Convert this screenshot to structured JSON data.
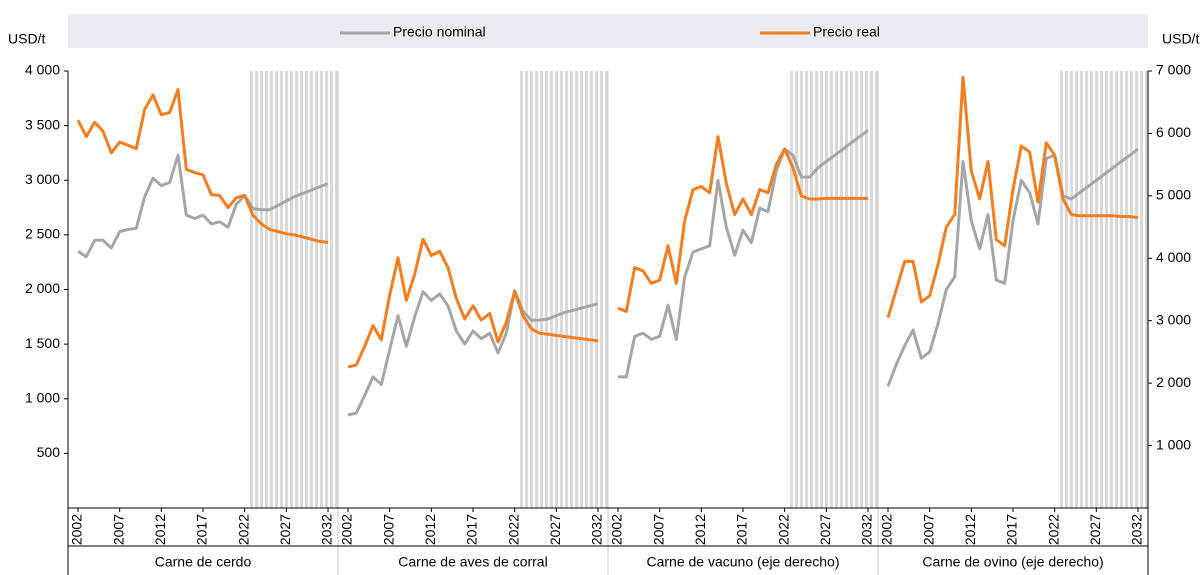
{
  "chart_data": [
    {
      "type": "line",
      "xlabel": "Carne de cerdo",
      "ylabel": "USD/t",
      "shade_from": 2023,
      "x": [
        2002,
        2003,
        2004,
        2005,
        2006,
        2007,
        2008,
        2009,
        2010,
        2011,
        2012,
        2013,
        2014,
        2015,
        2016,
        2017,
        2018,
        2019,
        2020,
        2021,
        2022,
        2023,
        2024,
        2025,
        2026,
        2027,
        2028,
        2029,
        2030,
        2031,
        2032
      ],
      "xticks": [
        2002,
        2007,
        2012,
        2017,
        2022,
        2027,
        2032
      ],
      "ylim": [
        0,
        4000
      ],
      "yticks": [
        {
          "value": 500,
          "label": "500"
        },
        {
          "value": 1000,
          "label": "1 000"
        },
        {
          "value": 1500,
          "label": "1 500"
        },
        {
          "value": 2000,
          "label": "2 000"
        },
        {
          "value": 2500,
          "label": "2 500"
        },
        {
          "value": 3000,
          "label": "3 000"
        },
        {
          "value": 3500,
          "label": "3 500"
        },
        {
          "value": 4000,
          "label": "4 000"
        }
      ],
      "series": [
        {
          "name": "Precio nominal",
          "color": "#a6a6a6",
          "values": [
            2350,
            2300,
            2450,
            2450,
            2380,
            2530,
            2550,
            2560,
            2850,
            3020,
            2950,
            2980,
            3230,
            2680,
            2650,
            2680,
            2600,
            2620,
            2570,
            2780,
            2860,
            2740,
            2730,
            2730,
            2770,
            2810,
            2850,
            2880,
            2910,
            2940,
            2970
          ]
        },
        {
          "name": "Precio real",
          "color": "#f47d20",
          "values": [
            3550,
            3400,
            3530,
            3450,
            3250,
            3350,
            3320,
            3290,
            3650,
            3780,
            3600,
            3620,
            3830,
            3100,
            3070,
            3050,
            2870,
            2860,
            2750,
            2840,
            2860,
            2680,
            2600,
            2550,
            2530,
            2510,
            2500,
            2480,
            2460,
            2440,
            2430
          ]
        }
      ]
    },
    {
      "type": "line",
      "xlabel": "Carne de aves de corral",
      "shade_from": 2023,
      "x": [
        2002,
        2003,
        2004,
        2005,
        2006,
        2007,
        2008,
        2009,
        2010,
        2011,
        2012,
        2013,
        2014,
        2015,
        2016,
        2017,
        2018,
        2019,
        2020,
        2021,
        2022,
        2023,
        2024,
        2025,
        2026,
        2027,
        2028,
        2029,
        2030,
        2031,
        2032
      ],
      "xticks": [
        2002,
        2007,
        2012,
        2017,
        2022,
        2027,
        2032
      ],
      "ylim": [
        0,
        4000
      ],
      "series": [
        {
          "name": "Precio nominal",
          "color": "#a6a6a6",
          "values": [
            850,
            870,
            1030,
            1200,
            1130,
            1450,
            1760,
            1480,
            1750,
            1980,
            1900,
            1960,
            1850,
            1620,
            1500,
            1620,
            1550,
            1600,
            1420,
            1600,
            1990,
            1800,
            1720,
            1720,
            1730,
            1760,
            1790,
            1810,
            1830,
            1850,
            1870
          ]
        },
        {
          "name": "Precio real",
          "color": "#f47d20",
          "values": [
            1290,
            1310,
            1480,
            1670,
            1540,
            1950,
            2290,
            1900,
            2140,
            2460,
            2310,
            2350,
            2200,
            1920,
            1730,
            1850,
            1720,
            1780,
            1520,
            1700,
            1980,
            1760,
            1640,
            1600,
            1590,
            1580,
            1570,
            1560,
            1550,
            1540,
            1530
          ]
        }
      ]
    },
    {
      "type": "line",
      "xlabel": "Carne de vacuno (eje derecho)",
      "y2label": "USD/t",
      "shade_from": 2023,
      "x": [
        2002,
        2003,
        2004,
        2005,
        2006,
        2007,
        2008,
        2009,
        2010,
        2011,
        2012,
        2013,
        2014,
        2015,
        2016,
        2017,
        2018,
        2019,
        2020,
        2021,
        2022,
        2023,
        2024,
        2025,
        2026,
        2027,
        2028,
        2029,
        2030,
        2031,
        2032
      ],
      "xticks": [
        2002,
        2007,
        2012,
        2017,
        2022,
        2027,
        2032
      ],
      "y2lim": [
        0,
        7000
      ],
      "y2ticks": [
        {
          "value": 1000,
          "label": "1 000"
        },
        {
          "value": 2000,
          "label": "2 000"
        },
        {
          "value": 3000,
          "label": "3 000"
        },
        {
          "value": 4000,
          "label": "4 000"
        },
        {
          "value": 5000,
          "label": "5 000"
        },
        {
          "value": 6000,
          "label": "6 000"
        },
        {
          "value": 7000,
          "label": "7 000"
        }
      ],
      "series": [
        {
          "name": "Precio nominal",
          "color": "#a6a6a6",
          "axis": "y2",
          "values": [
            2100,
            2100,
            2750,
            2800,
            2700,
            2750,
            3250,
            2700,
            3700,
            4100,
            4150,
            4200,
            5250,
            4500,
            4050,
            4450,
            4250,
            4800,
            4750,
            5400,
            5750,
            5650,
            5300,
            5300,
            5450,
            5550,
            5650,
            5750,
            5850,
            5950,
            6050
          ]
        },
        {
          "name": "Precio real",
          "color": "#f47d20",
          "axis": "y2",
          "values": [
            3200,
            3150,
            3850,
            3800,
            3600,
            3650,
            4200,
            3600,
            4600,
            5100,
            5150,
            5050,
            5950,
            5200,
            4700,
            4950,
            4700,
            5100,
            5050,
            5500,
            5750,
            5450,
            5000,
            4950,
            4950,
            4960,
            4960,
            4960,
            4960,
            4960,
            4960
          ]
        }
      ]
    },
    {
      "type": "line",
      "xlabel": "Carne de ovino (eje derecho)",
      "shade_from": 2023,
      "x": [
        2002,
        2003,
        2004,
        2005,
        2006,
        2007,
        2008,
        2009,
        2010,
        2011,
        2012,
        2013,
        2014,
        2015,
        2016,
        2017,
        2018,
        2019,
        2020,
        2021,
        2022,
        2023,
        2024,
        2025,
        2026,
        2027,
        2028,
        2029,
        2030,
        2031,
        2032
      ],
      "xticks": [
        2002,
        2007,
        2012,
        2017,
        2022,
        2027,
        2032
      ],
      "y2lim": [
        0,
        7000
      ],
      "series": [
        {
          "name": "Precio nominal",
          "color": "#a6a6a6",
          "axis": "y2",
          "values": [
            1950,
            2300,
            2600,
            2850,
            2400,
            2500,
            2950,
            3500,
            3700,
            5550,
            4600,
            4150,
            4700,
            3650,
            3600,
            4600,
            5250,
            5050,
            4550,
            5600,
            5650,
            5000,
            4950,
            5050,
            5150,
            5250,
            5350,
            5450,
            5550,
            5650,
            5750
          ]
        },
        {
          "name": "Precio real",
          "color": "#f47d20",
          "axis": "y2",
          "values": [
            3050,
            3500,
            3950,
            3950,
            3300,
            3400,
            3900,
            4500,
            4700,
            6900,
            5400,
            4950,
            5550,
            4300,
            4200,
            5100,
            5800,
            5700,
            4900,
            5850,
            5650,
            4950,
            4700,
            4680,
            4680,
            4680,
            4680,
            4680,
            4670,
            4670,
            4650
          ]
        }
      ]
    }
  ]
}
